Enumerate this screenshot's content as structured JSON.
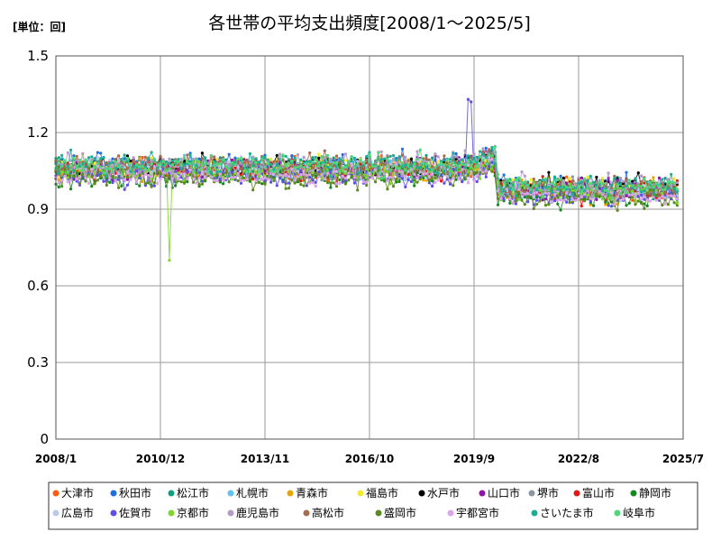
{
  "chart_data": {
    "type": "line",
    "title": "各世帯の平均支出頻度[2008/1～2025/5]",
    "unit_label": "[単位：回]",
    "ylim": [
      0,
      1.5
    ],
    "yticks": [
      "0",
      "0.3",
      "0.6",
      "0.9",
      "1.2",
      "1.5"
    ],
    "ytick_values": [
      0,
      0.3,
      0.6,
      0.9,
      1.2,
      1.5
    ],
    "xlim": [
      "2008/1",
      "2025/7"
    ],
    "xticks": [
      "2008/1",
      "2010/12",
      "2013/11",
      "2016/10",
      "2019/9",
      "2022/8",
      "2025/7"
    ],
    "grid": true,
    "legend_position": "bottom",
    "baseline_pre_2020": 1.05,
    "baseline_post_2020": 0.97,
    "annotations": {
      "kyoto_dip_2011_3": 0.7,
      "saga_peak_2019_7": 1.33
    },
    "series": [
      {
        "name": "大津市",
        "color": "#FF5A0E"
      },
      {
        "name": "秋田市",
        "color": "#1F6FE0"
      },
      {
        "name": "松江市",
        "color": "#10A080"
      },
      {
        "name": "札幌市",
        "color": "#5EC3F2"
      },
      {
        "name": "青森市",
        "color": "#E8A500"
      },
      {
        "name": "福島市",
        "color": "#F2EA2A"
      },
      {
        "name": "水戸市",
        "color": "#000000"
      },
      {
        "name": "山口市",
        "color": "#8E15A8"
      },
      {
        "name": "堺市",
        "color": "#8C96A0"
      },
      {
        "name": "富山市",
        "color": "#E01818"
      },
      {
        "name": "静岡市",
        "color": "#138A1E"
      },
      {
        "name": "広島市",
        "color": "#BDC9E8"
      },
      {
        "name": "佐賀市",
        "color": "#5B4FE8"
      },
      {
        "name": "京都市",
        "color": "#7ED62A"
      },
      {
        "name": "鹿児島市",
        "color": "#B39BC8"
      },
      {
        "name": "高松市",
        "color": "#A86A4E"
      },
      {
        "name": "盛岡市",
        "color": "#5B8A1E"
      },
      {
        "name": "宇都宮市",
        "color": "#DDA3EB"
      },
      {
        "name": "さいたま市",
        "color": "#1BAE95"
      },
      {
        "name": "岐阜市",
        "color": "#4ED87A"
      }
    ]
  }
}
